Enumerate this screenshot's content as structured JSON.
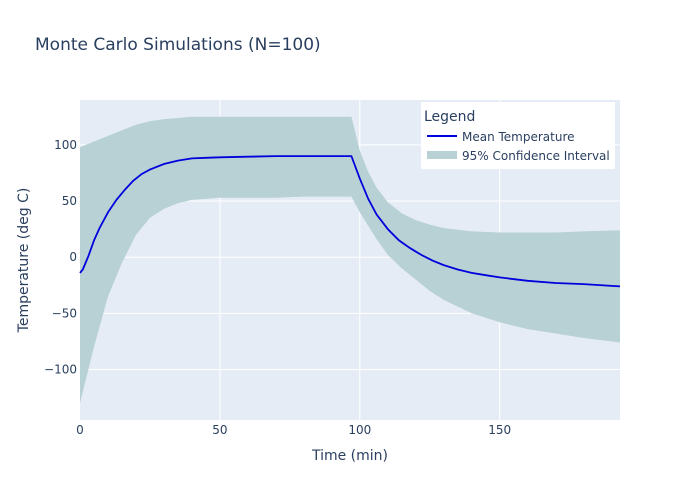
{
  "chart_data": {
    "type": "line",
    "title": "Monte Carlo Simulations (N=100)",
    "xlabel": "Time (min)",
    "ylabel": "Temperature (deg C)",
    "xlim": [
      0,
      193
    ],
    "ylim": [
      -145,
      140
    ],
    "xticks": [
      0,
      50,
      100,
      150
    ],
    "yticks": [
      -100,
      -50,
      0,
      50,
      100
    ],
    "xtick_labels": [
      "0",
      "50",
      "100",
      "150"
    ],
    "ytick_labels": [
      "−100",
      "−50",
      "0",
      "50",
      "100"
    ],
    "grid": true,
    "legend": {
      "title": "Legend",
      "position": "top-right",
      "entries": [
        "Mean Temperature",
        "95% Confidence Interval"
      ]
    },
    "colors": {
      "mean_line": "#0000dd",
      "ci_fill": "#b8d1d4",
      "plot_bg": "#e5ecf6",
      "text": "#2a3f5f"
    },
    "series": [
      {
        "name": "Mean Temperature",
        "type": "line",
        "x": [
          0,
          1,
          3,
          5,
          7,
          10,
          13,
          16,
          19,
          22,
          25,
          30,
          35,
          40,
          45,
          50,
          60,
          70,
          80,
          90,
          97,
          100,
          103,
          106,
          110,
          114,
          118,
          122,
          126,
          130,
          135,
          140,
          145,
          150,
          160,
          170,
          180,
          193
        ],
        "y": [
          -14,
          -11,
          1,
          15,
          26,
          40,
          51,
          60,
          68,
          74,
          78,
          83,
          86,
          88,
          88.5,
          89,
          89.5,
          90,
          90,
          90,
          90,
          70,
          52,
          38,
          25,
          15,
          8,
          2,
          -3,
          -7,
          -11,
          -14,
          -16,
          -18,
          -21,
          -23,
          -24,
          -26
        ]
      },
      {
        "name": "95% Confidence Interval",
        "type": "area",
        "x": [
          0,
          5,
          10,
          15,
          20,
          25,
          30,
          35,
          40,
          50,
          60,
          70,
          80,
          90,
          97,
          100,
          103,
          106,
          110,
          115,
          120,
          125,
          130,
          140,
          150,
          160,
          170,
          180,
          193
        ],
        "upper": [
          98,
          103,
          108,
          113,
          118,
          121,
          123,
          124,
          125,
          125,
          125,
          125,
          125,
          125,
          125,
          95,
          76,
          62,
          49,
          39,
          33,
          29,
          26,
          23,
          22,
          22,
          22,
          23,
          24
        ],
        "lower": [
          -130,
          -80,
          -35,
          -5,
          20,
          35,
          43,
          48,
          51,
          53,
          53,
          53,
          54,
          54,
          54,
          40,
          28,
          16,
          2,
          -10,
          -20,
          -30,
          -38,
          -50,
          -58,
          -64,
          -68,
          -72,
          -76
        ]
      }
    ]
  }
}
